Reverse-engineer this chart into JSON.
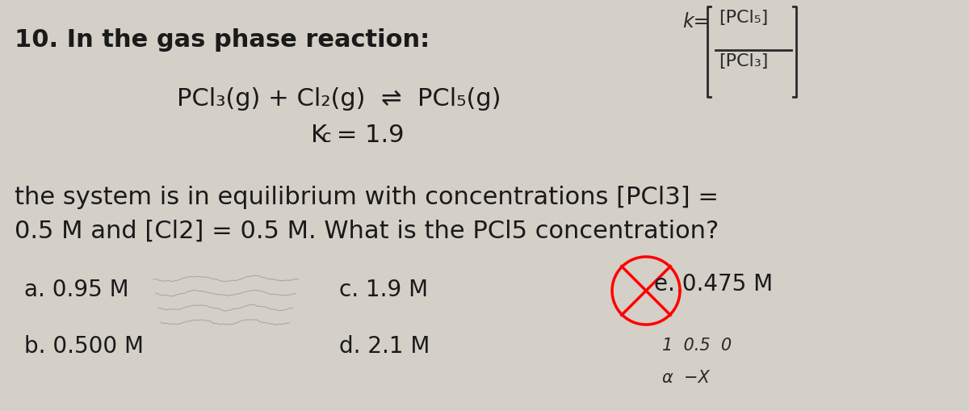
{
  "background_color": "#d4cfc7",
  "title_num": "10.",
  "title_text": " In the gas phase reaction:",
  "reaction_line": "PCl3(g) + Cl2(g) ⇌ PCl5(g)",
  "kc_line": "Kc = 1.9",
  "body_line1": "the system is in equilibrium with concentrations [PCl3] =",
  "body_line2": "0.5 M and [Cl2] = 0.5 M. What is the PCl5 concentration?",
  "answer_a": "a. 0.95 M",
  "answer_b": "b. 0.500 M",
  "answer_c": "c. 1.9 M",
  "answer_d": "d. 2.1 M",
  "answer_e": "e. 0.475 M",
  "circle_color": "red",
  "font_size_main": 22,
  "font_size_answer": 20
}
